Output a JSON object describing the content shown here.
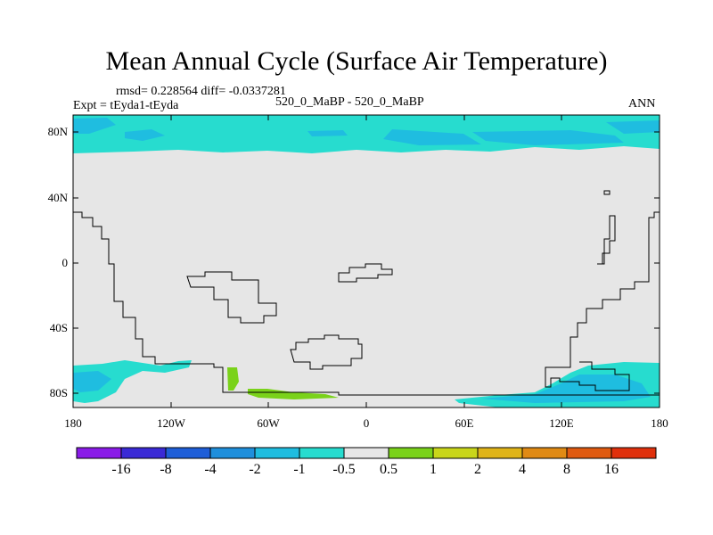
{
  "title": "Mean Annual Cycle (Surface Air Temperature)",
  "stats": "rmsd= 0.228564 diff= -0.0337281",
  "experiment": "Expt = tEyda1-tEyda",
  "case": "520_0_MaBP - 520_0_MaBP",
  "season": "ANN",
  "y_ticks": [
    "80N",
    "40N",
    "0",
    "40S",
    "80S"
  ],
  "x_ticks": [
    "180",
    "120W",
    "60W",
    "0",
    "60E",
    "120E",
    "180"
  ],
  "colorbar": {
    "labels": [
      "-16",
      "-8",
      "-4",
      "-2",
      "-1",
      "-0.5",
      "0.5",
      "1",
      "2",
      "4",
      "8",
      "16"
    ],
    "colors": [
      "#8a1be8",
      "#3a2ad6",
      "#1e5ed8",
      "#1f8fdc",
      "#1fbde0",
      "#27dccf",
      "#e6e6e6",
      "#7ad21a",
      "#c9d61a",
      "#e0b418",
      "#e08a14",
      "#e05a10",
      "#e0300c"
    ]
  },
  "map_colors": {
    "background": "#e6e6e6",
    "cyan_light": "#27dccf",
    "cyan_mid": "#1fbde0",
    "green": "#7ad21a"
  }
}
